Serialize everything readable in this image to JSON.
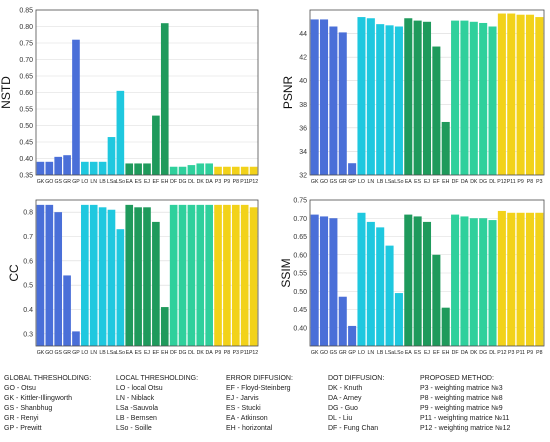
{
  "chart_data": [
    {
      "type": "bar",
      "ylabel": "NSTD",
      "ylim": [
        0.35,
        0.85
      ],
      "yticks": [
        0.35,
        0.4,
        0.45,
        0.5,
        0.55,
        0.6,
        0.65,
        0.7,
        0.75,
        0.8,
        0.85
      ],
      "grid": true,
      "categories": [
        "GK",
        "GO",
        "GS",
        "GR",
        "GP",
        "LO",
        "LN",
        "LB",
        "LSa",
        "LSo",
        "EA",
        "ES",
        "EJ",
        "EF",
        "EH",
        "DF",
        "DG",
        "DL",
        "DK",
        "DA",
        "P3",
        "P9",
        "P8",
        "P11",
        "P12"
      ],
      "values": [
        0.39,
        0.39,
        0.405,
        0.41,
        0.76,
        0.39,
        0.39,
        0.39,
        0.465,
        0.605,
        0.385,
        0.385,
        0.385,
        0.53,
        0.81,
        0.375,
        0.375,
        0.38,
        0.385,
        0.385,
        0.375,
        0.375,
        0.375,
        0.375,
        0.375
      ],
      "colors": [
        "#4a6fd8",
        "#4a6fd8",
        "#4a6fd8",
        "#4a6fd8",
        "#4a6fd8",
        "#1fc8df",
        "#1fc8df",
        "#1fc8df",
        "#1fc8df",
        "#1fc8df",
        "#1f9a5c",
        "#1f9a5c",
        "#1f9a5c",
        "#1f9a5c",
        "#1f9a5c",
        "#2fd09c",
        "#2fd09c",
        "#2fd09c",
        "#2fd09c",
        "#2fd09c",
        "#f2d21a",
        "#f2d21a",
        "#f2d21a",
        "#f2d21a",
        "#f2d21a"
      ]
    },
    {
      "type": "bar",
      "ylabel": "PSNR",
      "ylim": [
        32,
        46
      ],
      "yticks": [
        32,
        34,
        36,
        38,
        40,
        42,
        44
      ],
      "grid": true,
      "categories": [
        "GK",
        "GO",
        "GS",
        "GR",
        "GP",
        "LO",
        "LN",
        "LB",
        "LSa",
        "LSo",
        "EA",
        "ES",
        "EJ",
        "EF",
        "EH",
        "DF",
        "DA",
        "DK",
        "DG",
        "DL",
        "P12",
        "P11",
        "P9",
        "P8",
        "P3"
      ],
      "values": [
        45.2,
        45.2,
        44.6,
        44.1,
        33.0,
        45.4,
        45.3,
        44.8,
        44.7,
        44.6,
        45.3,
        45.1,
        45.0,
        42.9,
        36.5,
        45.1,
        45.1,
        45.0,
        44.9,
        44.6,
        45.7,
        45.7,
        45.6,
        45.6,
        45.4
      ],
      "colors": [
        "#4a6fd8",
        "#4a6fd8",
        "#4a6fd8",
        "#4a6fd8",
        "#4a6fd8",
        "#1fc8df",
        "#1fc8df",
        "#1fc8df",
        "#1fc8df",
        "#1fc8df",
        "#1f9a5c",
        "#1f9a5c",
        "#1f9a5c",
        "#1f9a5c",
        "#1f9a5c",
        "#2fd09c",
        "#2fd09c",
        "#2fd09c",
        "#2fd09c",
        "#2fd09c",
        "#f2d21a",
        "#f2d21a",
        "#f2d21a",
        "#f2d21a",
        "#f2d21a"
      ]
    },
    {
      "type": "bar",
      "ylabel": "CC",
      "ylim": [
        0.25,
        0.85
      ],
      "yticks": [
        0.3,
        0.4,
        0.5,
        0.6,
        0.7,
        0.8
      ],
      "grid": true,
      "categories": [
        "GK",
        "GO",
        "GS",
        "GR",
        "GP",
        "LO",
        "LN",
        "LB",
        "LSa",
        "LSo",
        "EA",
        "ES",
        "EJ",
        "EF",
        "EH",
        "DF",
        "DG",
        "DL",
        "DK",
        "DA",
        "P9",
        "P8",
        "P3",
        "P11",
        "P12"
      ],
      "values": [
        0.83,
        0.83,
        0.8,
        0.54,
        0.31,
        0.83,
        0.83,
        0.82,
        0.81,
        0.73,
        0.83,
        0.82,
        0.82,
        0.76,
        0.41,
        0.83,
        0.83,
        0.83,
        0.83,
        0.83,
        0.83,
        0.83,
        0.83,
        0.83,
        0.82
      ],
      "colors": [
        "#4a6fd8",
        "#4a6fd8",
        "#4a6fd8",
        "#4a6fd8",
        "#4a6fd8",
        "#1fc8df",
        "#1fc8df",
        "#1fc8df",
        "#1fc8df",
        "#1fc8df",
        "#1f9a5c",
        "#1f9a5c",
        "#1f9a5c",
        "#1f9a5c",
        "#1f9a5c",
        "#2fd09c",
        "#2fd09c",
        "#2fd09c",
        "#2fd09c",
        "#2fd09c",
        "#f2d21a",
        "#f2d21a",
        "#f2d21a",
        "#f2d21a",
        "#f2d21a"
      ]
    },
    {
      "type": "bar",
      "ylabel": "SSIM",
      "ylim": [
        0.35,
        0.75
      ],
      "yticks": [
        0.4,
        0.45,
        0.5,
        0.55,
        0.6,
        0.65,
        0.7,
        0.75
      ],
      "grid": true,
      "categories": [
        "GK",
        "GO",
        "GS",
        "GR",
        "GP",
        "LO",
        "LN",
        "LB",
        "LSa",
        "LSo",
        "EA",
        "ES",
        "EJ",
        "EF",
        "EH",
        "DF",
        "DA",
        "DK",
        "DG",
        "DL",
        "P12",
        "P3",
        "P11",
        "P9",
        "P8"
      ],
      "values": [
        0.71,
        0.705,
        0.7,
        0.485,
        0.405,
        0.715,
        0.69,
        0.675,
        0.625,
        0.495,
        0.71,
        0.705,
        0.69,
        0.6,
        0.455,
        0.71,
        0.705,
        0.7,
        0.7,
        0.695,
        0.72,
        0.715,
        0.715,
        0.715,
        0.715
      ],
      "colors": [
        "#4a6fd8",
        "#4a6fd8",
        "#4a6fd8",
        "#4a6fd8",
        "#4a6fd8",
        "#1fc8df",
        "#1fc8df",
        "#1fc8df",
        "#1fc8df",
        "#1fc8df",
        "#1f9a5c",
        "#1f9a5c",
        "#1f9a5c",
        "#1f9a5c",
        "#1f9a5c",
        "#2fd09c",
        "#2fd09c",
        "#2fd09c",
        "#2fd09c",
        "#2fd09c",
        "#f2d21a",
        "#f2d21a",
        "#f2d21a",
        "#f2d21a",
        "#f2d21a"
      ]
    }
  ],
  "legend": {
    "global": {
      "heading": "GLOBAL THRESHOLDING:",
      "items": [
        "GO - Otsu",
        "GK - Kittler-Illingworth",
        "GS - Shanbhug",
        "GR - Renyi",
        "GP - Prewitt"
      ]
    },
    "local": {
      "heading": "LOCAL THRESHOLDING:",
      "items": [
        "LO - local Otsu",
        "LN - Niblack",
        "LSa -Sauvola",
        "LB - Bernsen",
        "LSo - Soille"
      ]
    },
    "error": {
      "heading": "ERROR DIFFUSION:",
      "items": [
        "EF - Floyd-Steinberg",
        "EJ - Jarvis",
        "ES - Stucki",
        "EA - Atkinson",
        "EH - horizontal"
      ]
    },
    "dot": {
      "heading": "DOT DIFFUSION:",
      "items": [
        "DK - Knuth",
        "DA - Arney",
        "DG - Guo",
        "DL - Liu",
        "DF - Fung Chan"
      ]
    },
    "proposed": {
      "heading": "PROPOSED METHOD:",
      "items": [
        "P3 - weighting matrice №3",
        "P8 - weighting matrice №8",
        "P9 - weighting matrice №9",
        "P11 - weighting matrice №11",
        "P12 - weighting matrice №12"
      ]
    }
  }
}
